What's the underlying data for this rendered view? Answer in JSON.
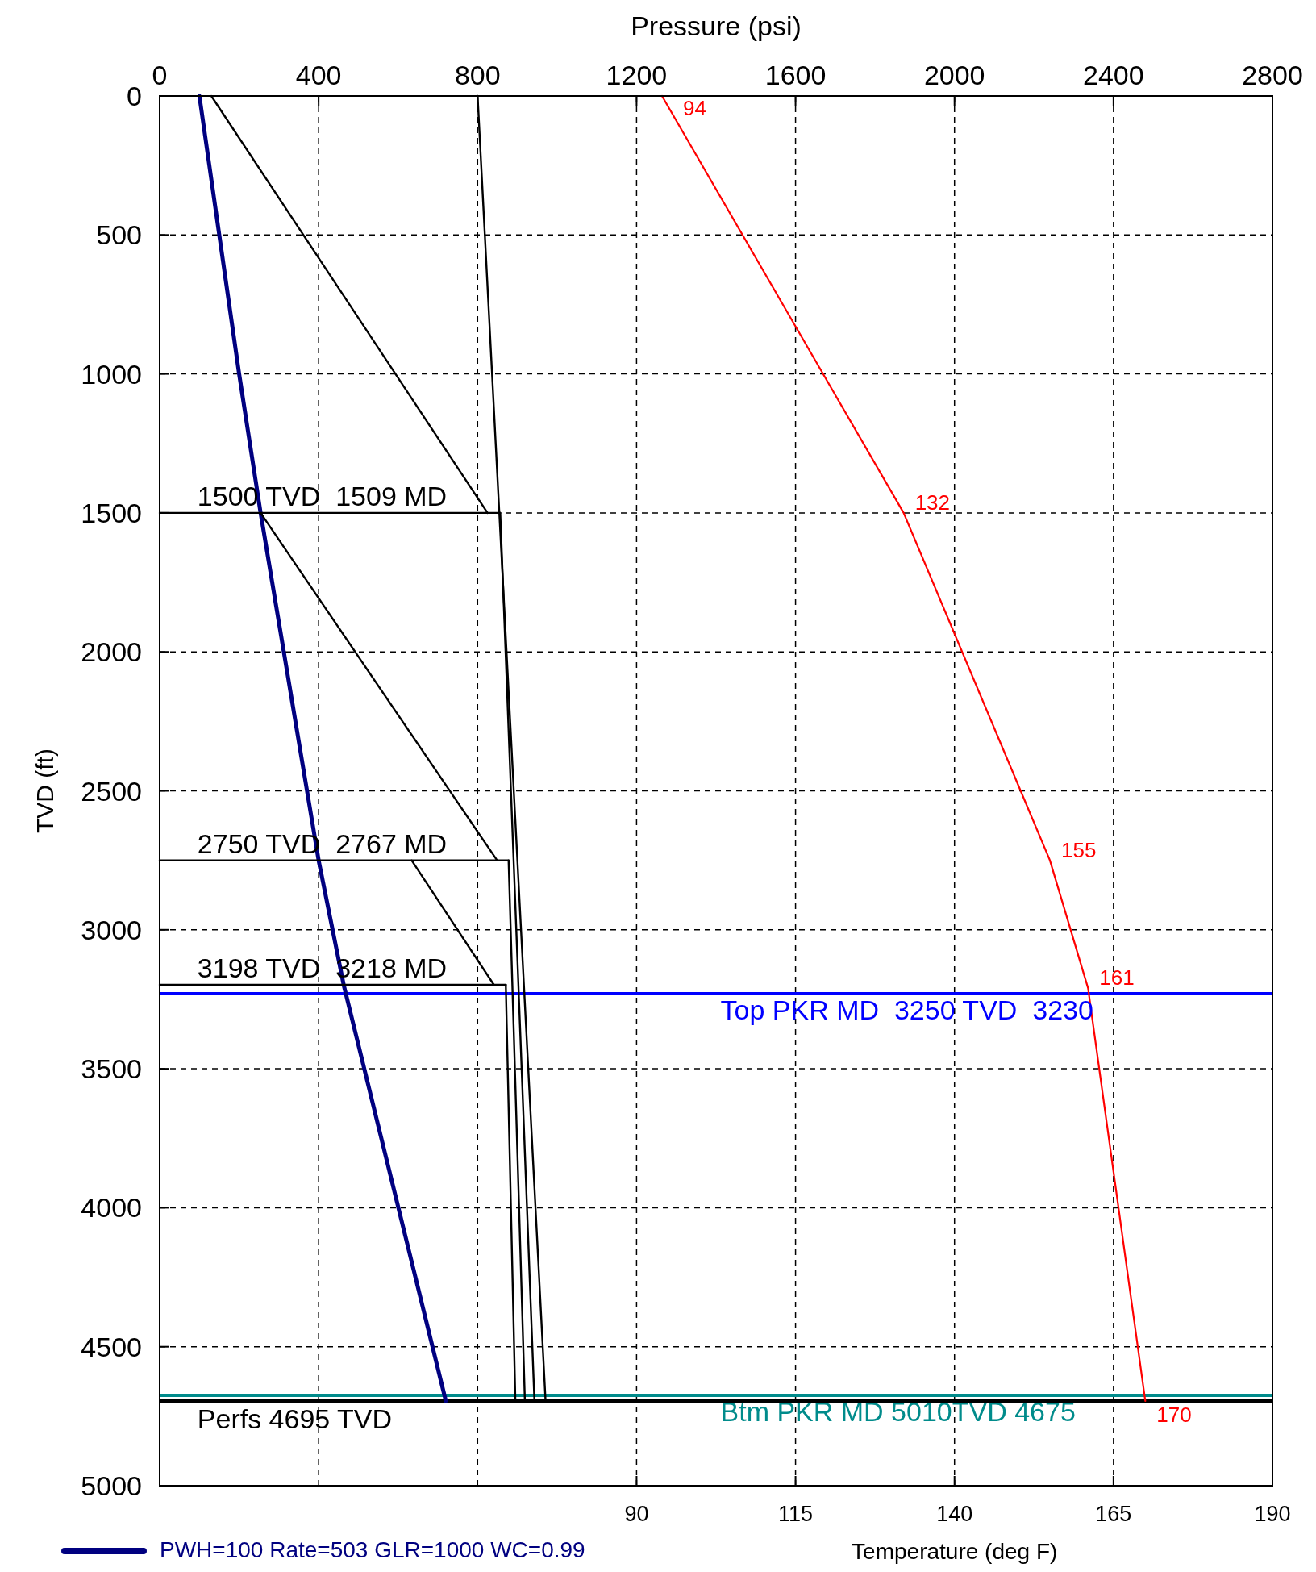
{
  "chart_data": {
    "type": "line",
    "xlabel": "Pressure (psi)",
    "ylabel": "TVD (ft)",
    "x2label": "Temperature (deg F)",
    "xlim": [
      0,
      2800
    ],
    "xticks": [
      0,
      400,
      800,
      1200,
      1600,
      2000,
      2400,
      2800
    ],
    "x2lim": [
      15,
      190
    ],
    "x2ticks": [
      90,
      115,
      140,
      165,
      190
    ],
    "ylim": [
      5000,
      0
    ],
    "yticks": [
      0,
      500,
      1000,
      1500,
      2000,
      2500,
      3000,
      3500,
      4000,
      4500,
      5000
    ],
    "grid": true,
    "line_style": "solid",
    "marker": "none",
    "legend": "bottom left",
    "series": [
      {
        "name": "PWH=100 Rate=503 GLR=1000 WC=0.99",
        "color": "#000080",
        "x": [
          100,
          200,
          254,
          400,
          463,
          720
        ],
        "values": [
          0,
          1000,
          1500,
          2750,
          3198,
          4695
        ]
      },
      {
        "color": "#000000",
        "x": [
          130,
          825
        ],
        "values": [
          0,
          1500
        ]
      },
      {
        "color": "#000000",
        "x": [
          254,
          849
        ],
        "values": [
          1500,
          2750
        ]
      },
      {
        "color": "#000000",
        "x": [
          634,
          841
        ],
        "values": [
          2750,
          3198
        ]
      },
      {
        "color": "#000000",
        "x": [
          800,
          971
        ],
        "values": [
          0,
          4695
        ]
      },
      {
        "color": "#000000",
        "x": [
          857,
          943
        ],
        "values": [
          1500,
          4695
        ]
      },
      {
        "color": "#000000",
        "x": [
          878,
          919
        ],
        "values": [
          2750,
          4695
        ]
      },
      {
        "color": "#000000",
        "x": [
          871,
          895
        ],
        "values": [
          3198,
          4695
        ]
      },
      {
        "color": "#000000",
        "x": [
          0,
          857
        ],
        "values": [
          1500,
          1500
        ]
      },
      {
        "color": "#000000",
        "x": [
          0,
          878
        ],
        "values": [
          2750,
          2750
        ]
      },
      {
        "color": "#000000",
        "x": [
          0,
          871
        ],
        "values": [
          3198,
          3198
        ]
      },
      {
        "color": "#ff0000",
        "axis": "x2",
        "x": [
          94,
          132,
          155,
          161,
          170
        ],
        "values": [
          0,
          1500,
          2750,
          3210,
          4695
        ]
      }
    ],
    "ref_lines": [
      {
        "axis": "y",
        "value": 3230,
        "label": "Top PKR MD  3250 TVD  3230",
        "color": "#0000ff"
      },
      {
        "axis": "y",
        "value": 4675,
        "label": "Btm PKR MD 5010TVD 4675",
        "color": "#008b8b"
      },
      {
        "axis": "y",
        "value": 4695,
        "color": "#000000"
      }
    ],
    "annotations": [
      {
        "text": "1500 TVD  1509 MD",
        "x": 95,
        "y": 1500
      },
      {
        "text": "2750 TVD  2767 MD",
        "x": 95,
        "y": 2750
      },
      {
        "text": "3198 TVD  3218 MD",
        "x": 95,
        "y": 3198
      },
      {
        "text": "Perfs 4695 TVD",
        "x": 95,
        "y": 4695
      },
      {
        "text": "94",
        "x": 1264,
        "y": 0
      },
      {
        "text": "132",
        "x": 1872,
        "y": 1500
      },
      {
        "text": "155",
        "x": 2240,
        "y": 2750
      },
      {
        "text": "161",
        "x": 2336,
        "y": 3210
      },
      {
        "text": "170",
        "x": 2480,
        "y": 4695
      }
    ]
  }
}
